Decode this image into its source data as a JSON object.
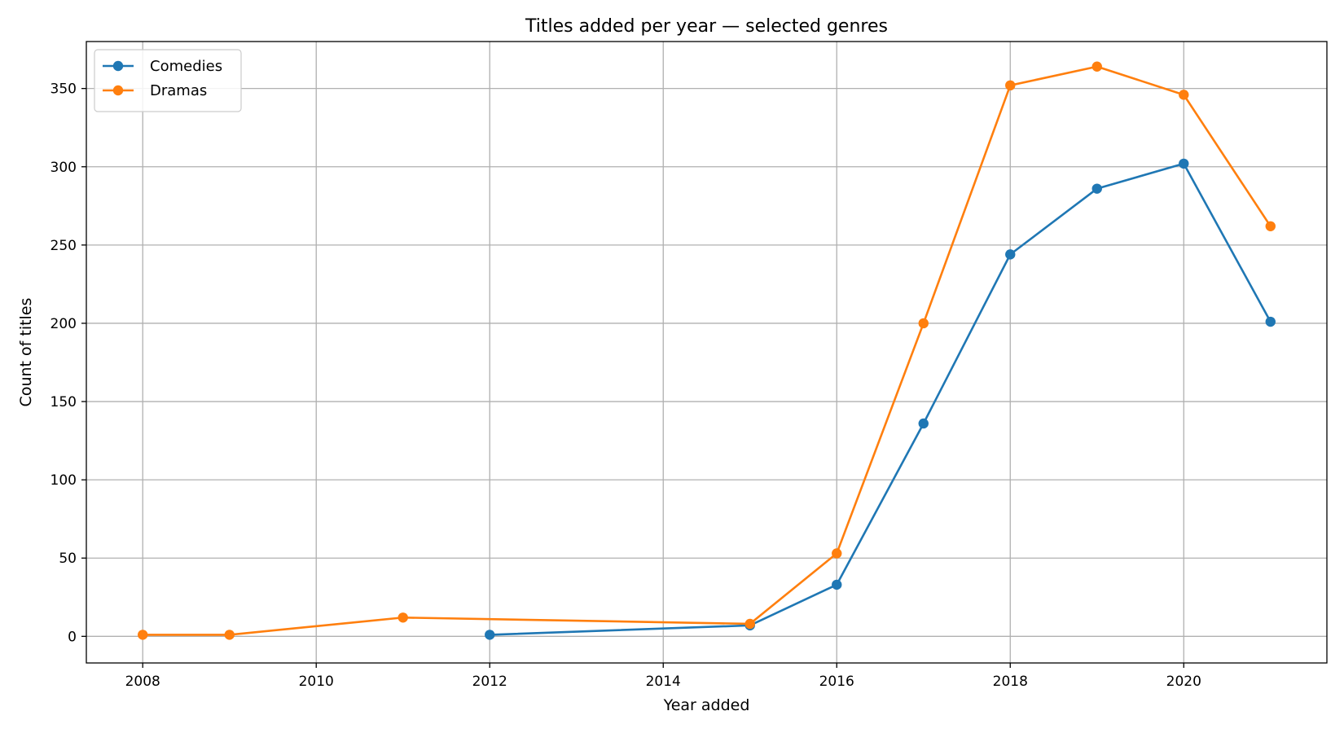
{
  "chart_data": {
    "type": "line",
    "title": "Titles added per year — selected genres",
    "xlabel": "Year added",
    "ylabel": "Count of titles",
    "xlim": [
      2007.35,
      2021.65
    ],
    "ylim": [
      -17,
      380
    ],
    "xticks": [
      2008,
      2010,
      2012,
      2014,
      2016,
      2018,
      2020
    ],
    "yticks": [
      0,
      50,
      100,
      150,
      200,
      250,
      300,
      350
    ],
    "grid": true,
    "legend_position": "upper-left",
    "series": [
      {
        "name": "Comedies",
        "color": "#1f77b4",
        "x": [
          2012,
          2015,
          2016,
          2017,
          2018,
          2019,
          2020,
          2021
        ],
        "y": [
          1,
          7,
          33,
          136,
          244,
          286,
          302,
          201
        ]
      },
      {
        "name": "Dramas",
        "color": "#ff7f0e",
        "x": [
          2008,
          2009,
          2011,
          2015,
          2016,
          2017,
          2018,
          2019,
          2020,
          2021
        ],
        "y": [
          1,
          1,
          12,
          8,
          53,
          200,
          352,
          364,
          346,
          262
        ]
      }
    ]
  }
}
